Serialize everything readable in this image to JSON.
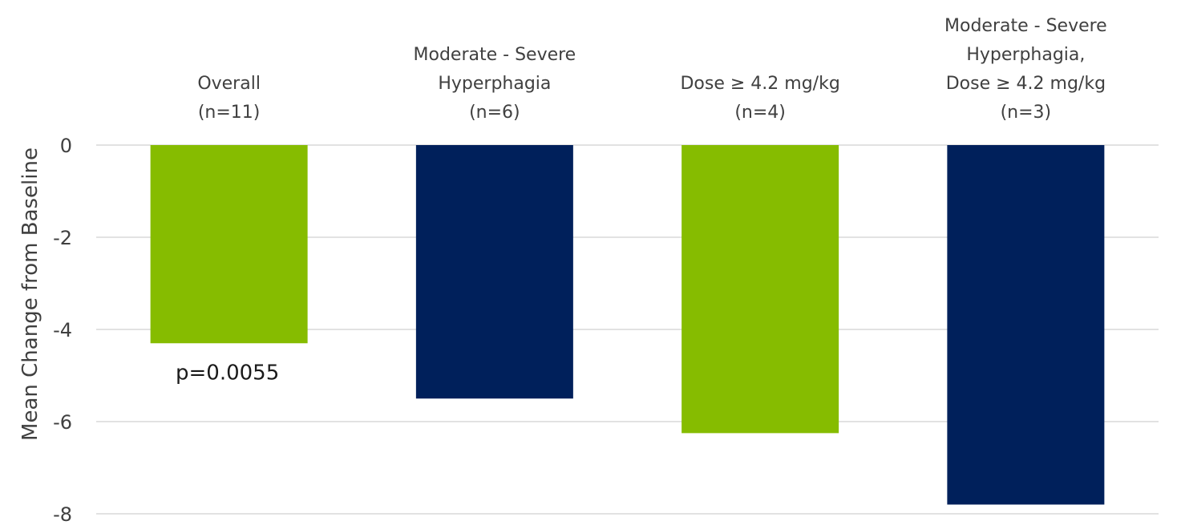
{
  "chart_data": {
    "type": "bar",
    "categories": [
      [
        "Overall",
        "(n=11)"
      ],
      [
        "Moderate - Severe",
        "Hyperphagia",
        "(n=6)"
      ],
      [
        "Dose ≥ 4.2 mg/kg",
        "(n=4)"
      ],
      [
        "Moderate - Severe",
        "Hyperphagia,",
        "Dose ≥ 4.2 mg/kg",
        "(n=3)"
      ]
    ],
    "values": [
      -4.3,
      -5.5,
      -6.25,
      -7.8
    ],
    "colors": [
      "#86bc00",
      "#00205b",
      "#86bc00",
      "#00205b"
    ],
    "ylabel": "Mean Change from Baseline",
    "ylim": [
      -8,
      0
    ],
    "yticks": [
      0,
      -2,
      -4,
      -6,
      -8
    ],
    "grid": true,
    "legend": "none",
    "annotations": [
      {
        "category_index": 0,
        "text": "p=0.0055"
      }
    ]
  }
}
